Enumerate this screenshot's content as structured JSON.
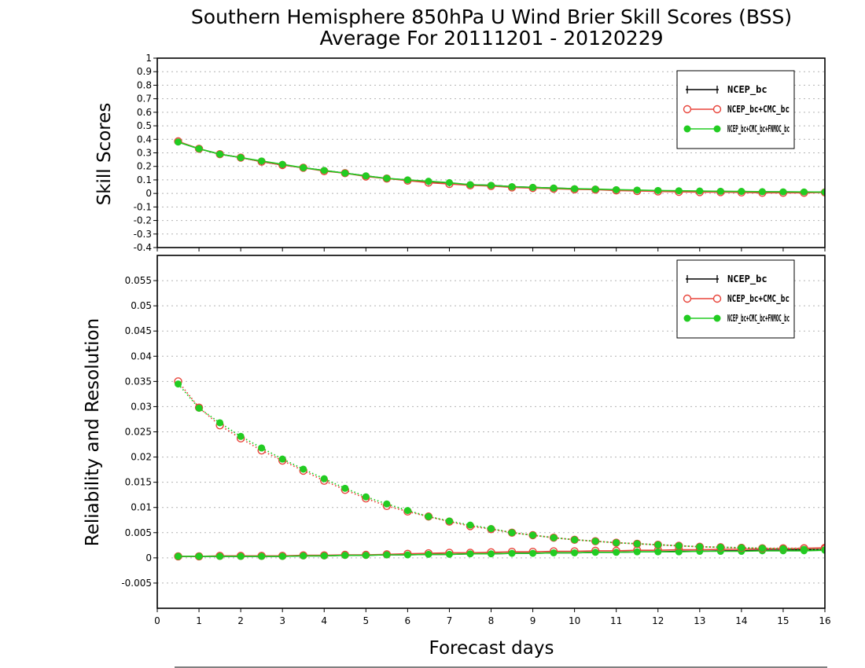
{
  "figure": {
    "title_line1": "Southern Hemisphere 850hPa U Wind Brier Skill Scores (BSS)",
    "title_line2": "Average For 20111201 - 20120229"
  },
  "chart_data": [
    {
      "type": "line",
      "ylabel": "Skill Scores",
      "xlabel": "",
      "xlim": [
        0,
        16
      ],
      "ylim": [
        -0.4,
        1
      ],
      "yticks": [
        "-0.4",
        "-0.3",
        "-0.2",
        "-0.1",
        "0",
        "0.1",
        "0.2",
        "0.3",
        "0.4",
        "0.5",
        "0.6",
        "0.7",
        "0.8",
        "0.9",
        "1"
      ],
      "grid": true,
      "legend_position": "top-right",
      "x": [
        0.5,
        1,
        1.5,
        2,
        2.5,
        3,
        3.5,
        4,
        4.5,
        5,
        5.5,
        6,
        6.5,
        7,
        7.5,
        8,
        8.5,
        9,
        9.5,
        10,
        10.5,
        11,
        11.5,
        12,
        12.5,
        13,
        13.5,
        14,
        14.5,
        15,
        15.5,
        16
      ],
      "series": [
        {
          "name": "NCEP_bc",
          "color": "#000000",
          "marker": "plus",
          "values": [
            0.38,
            0.33,
            0.29,
            0.265,
            0.235,
            0.21,
            0.19,
            0.17,
            0.15,
            0.13,
            0.11,
            0.1,
            0.085,
            0.075,
            0.065,
            0.06,
            0.05,
            0.045,
            0.04,
            0.035,
            0.03,
            0.025,
            0.022,
            0.02,
            0.018,
            0.016,
            0.015,
            0.013,
            0.012,
            0.011,
            0.01,
            0.01
          ]
        },
        {
          "name": "NCEP_bc+CMC_bc",
          "color": "#e8443a",
          "marker": "open-circle",
          "values": [
            0.385,
            0.33,
            0.29,
            0.265,
            0.235,
            0.21,
            0.19,
            0.165,
            0.15,
            0.125,
            0.11,
            0.095,
            0.08,
            0.07,
            0.06,
            0.055,
            0.045,
            0.04,
            0.035,
            0.03,
            0.028,
            0.022,
            0.018,
            0.015,
            0.012,
            0.01,
            0.01,
            0.008,
            0.005,
            0.005,
            0.005,
            0.008
          ]
        },
        {
          "name": "NCEP_bc+CMC_bc+FNMOC_bc",
          "color": "#22cc22",
          "marker": "filled-circle",
          "values": [
            0.38,
            0.33,
            0.29,
            0.265,
            0.24,
            0.215,
            0.19,
            0.17,
            0.15,
            0.13,
            0.112,
            0.1,
            0.09,
            0.08,
            0.065,
            0.06,
            0.05,
            0.045,
            0.04,
            0.035,
            0.032,
            0.028,
            0.025,
            0.022,
            0.02,
            0.018,
            0.016,
            0.015,
            0.013,
            0.012,
            0.011,
            0.01
          ]
        }
      ]
    },
    {
      "type": "line",
      "ylabel": "Reliability and Resolution",
      "xlabel": "Forecast days",
      "xlim": [
        0,
        16
      ],
      "ylim": [
        -0.01,
        0.06
      ],
      "xticks": [
        "0",
        "1",
        "2",
        "3",
        "4",
        "5",
        "6",
        "7",
        "8",
        "9",
        "10",
        "11",
        "12",
        "13",
        "14",
        "15",
        "16"
      ],
      "yticks": [
        "-0.005",
        "0",
        "0.005",
        "0.01",
        "0.015",
        "0.02",
        "0.025",
        "0.03",
        "0.035",
        "0.04",
        "0.045",
        "0.05",
        "0.055"
      ],
      "grid": true,
      "legend_position": "top-right",
      "x": [
        0.5,
        1,
        1.5,
        2,
        2.5,
        3,
        3.5,
        4,
        4.5,
        5,
        5.5,
        6,
        6.5,
        7,
        7.5,
        8,
        8.5,
        9,
        9.5,
        10,
        10.5,
        11,
        11.5,
        12,
        12.5,
        13,
        13.5,
        14,
        14.5,
        15,
        15.5,
        16
      ],
      "series": [
        {
          "name": "NCEP_bc",
          "color": "#000000",
          "marker": "plus",
          "linestyle": "solid",
          "values": [
            0.0003,
            0.0003,
            0.0003,
            0.0003,
            0.0003,
            0.0003,
            0.0004,
            0.0004,
            0.0005,
            0.0005,
            0.0006,
            0.0006,
            0.0007,
            0.0007,
            0.0008,
            0.0008,
            0.0009,
            0.0009,
            0.001,
            0.001,
            0.0011,
            0.0011,
            0.0012,
            0.0012,
            0.0013,
            0.0013,
            0.0014,
            0.0014,
            0.0015,
            0.0015,
            0.0016,
            0.0017
          ]
        },
        {
          "name": "NCEP_bc+CMC_bc",
          "color": "#e8443a",
          "marker": "open-circle",
          "linestyle": "solid",
          "values": [
            0.0003,
            0.0003,
            0.0004,
            0.0004,
            0.0004,
            0.0004,
            0.0005,
            0.0005,
            0.0006,
            0.0006,
            0.0007,
            0.0008,
            0.0009,
            0.001,
            0.001,
            0.0011,
            0.0012,
            0.0012,
            0.0013,
            0.0013,
            0.0014,
            0.0014,
            0.0015,
            0.0015,
            0.0016,
            0.0016,
            0.0017,
            0.0017,
            0.0018,
            0.0018,
            0.0019,
            0.002
          ]
        },
        {
          "name": "NCEP_bc+CMC_bc+FNMOC_bc",
          "color": "#22cc22",
          "marker": "filled-circle",
          "linestyle": "solid",
          "values": [
            0.0003,
            0.0003,
            0.0003,
            0.0003,
            0.0003,
            0.0003,
            0.0004,
            0.0004,
            0.0005,
            0.0005,
            0.0006,
            0.0006,
            0.0007,
            0.0007,
            0.0008,
            0.0008,
            0.0009,
            0.0009,
            0.001,
            0.001,
            0.0011,
            0.0011,
            0.0012,
            0.0012,
            0.0012,
            0.0013,
            0.0013,
            0.0013,
            0.0014,
            0.0014,
            0.0014,
            0.0015
          ]
        },
        {
          "name": "NCEP_bc+CMC_bc",
          "color": "#e8443a",
          "marker": "open-circle",
          "linestyle": "dotted",
          "in_legend": false,
          "values": [
            0.035,
            0.0298,
            0.0263,
            0.0237,
            0.0213,
            0.0193,
            0.0173,
            0.0153,
            0.0135,
            0.0118,
            0.0103,
            0.0092,
            0.0082,
            0.0072,
            0.0063,
            0.0057,
            0.005,
            0.0045,
            0.004,
            0.0036,
            0.0033,
            0.003,
            0.0028,
            0.0026,
            0.0024,
            0.0022,
            0.0021,
            0.002,
            0.0019,
            0.0019,
            0.0019,
            0.0018
          ]
        },
        {
          "name": "NCEP_bc+CMC_bc+FNMOC_bc",
          "color": "#22cc22",
          "marker": "filled-circle",
          "linestyle": "dotted",
          "in_legend": false,
          "values": [
            0.0345,
            0.0297,
            0.0268,
            0.0241,
            0.0218,
            0.0196,
            0.0176,
            0.0157,
            0.0138,
            0.0121,
            0.0107,
            0.0094,
            0.0082,
            0.0073,
            0.0065,
            0.0058,
            0.005,
            0.0045,
            0.004,
            0.0036,
            0.0033,
            0.003,
            0.0028,
            0.0026,
            0.0024,
            0.0022,
            0.0021,
            0.002,
            0.0019,
            0.0018,
            0.0017,
            0.0016
          ]
        }
      ]
    }
  ]
}
